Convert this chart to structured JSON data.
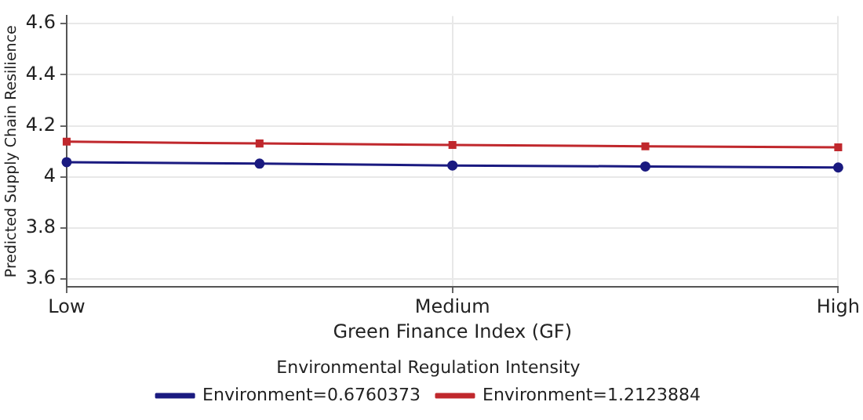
{
  "chart_data": {
    "type": "line",
    "xlabel": "Green Finance Index (GF)",
    "ylabel": "Predicted Supply Chain Resilience",
    "legend_title": "Environmental Regulation Intensity",
    "categories": [
      "Low",
      null,
      "Medium",
      null,
      "High"
    ],
    "ylim": [
      3.57,
      4.63
    ],
    "yticks": [
      3.6,
      3.8,
      4,
      4.2,
      4.4,
      4.6
    ],
    "series": [
      {
        "name": "Environment=0.6760373",
        "color": "#1a1a80",
        "marker": "circle",
        "values": [
          4.058,
          4.052,
          4.045,
          4.041,
          4.037
        ]
      },
      {
        "name": "Environment=1.2123884",
        "color": "#c0282d",
        "marker": "square",
        "values": [
          4.138,
          4.131,
          4.125,
          4.12,
          4.116
        ]
      }
    ],
    "grid": true,
    "legend": "bottom",
    "line_style": "solid"
  }
}
